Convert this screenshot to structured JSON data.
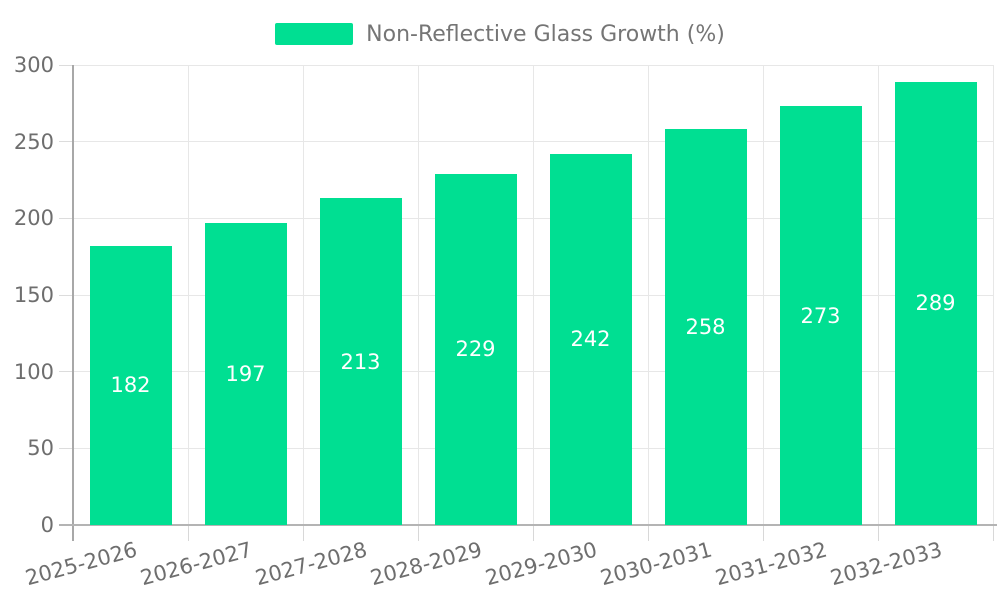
{
  "legend": {
    "label": "Non-Reflective Glass Growth (%)"
  },
  "chart_data": {
    "type": "bar",
    "title": "Non-Reflective Glass Growth (%)",
    "legend_position": "top",
    "categories": [
      "2025-2026",
      "2026-2027",
      "2027-2028",
      "2028-2029",
      "2029-2030",
      "2030-2031",
      "2031-2032",
      "2032-2033"
    ],
    "series": [
      {
        "name": "Non-Reflective Glass Growth (%)",
        "values": [
          182,
          197,
          213,
          229,
          242,
          258,
          273,
          289
        ]
      }
    ],
    "xlabel": "",
    "ylabel": "",
    "ylim": [
      0,
      300
    ],
    "yticks": [
      0,
      50,
      100,
      150,
      200,
      250,
      300
    ],
    "grid": "on",
    "value_labels": "inside-center",
    "colors": {
      "bar": "#00DF92",
      "value_label": "#ffffff",
      "axis_text": "#6e6e6e",
      "legend_text": "#757575",
      "gridline": "#e7e7e7"
    }
  }
}
